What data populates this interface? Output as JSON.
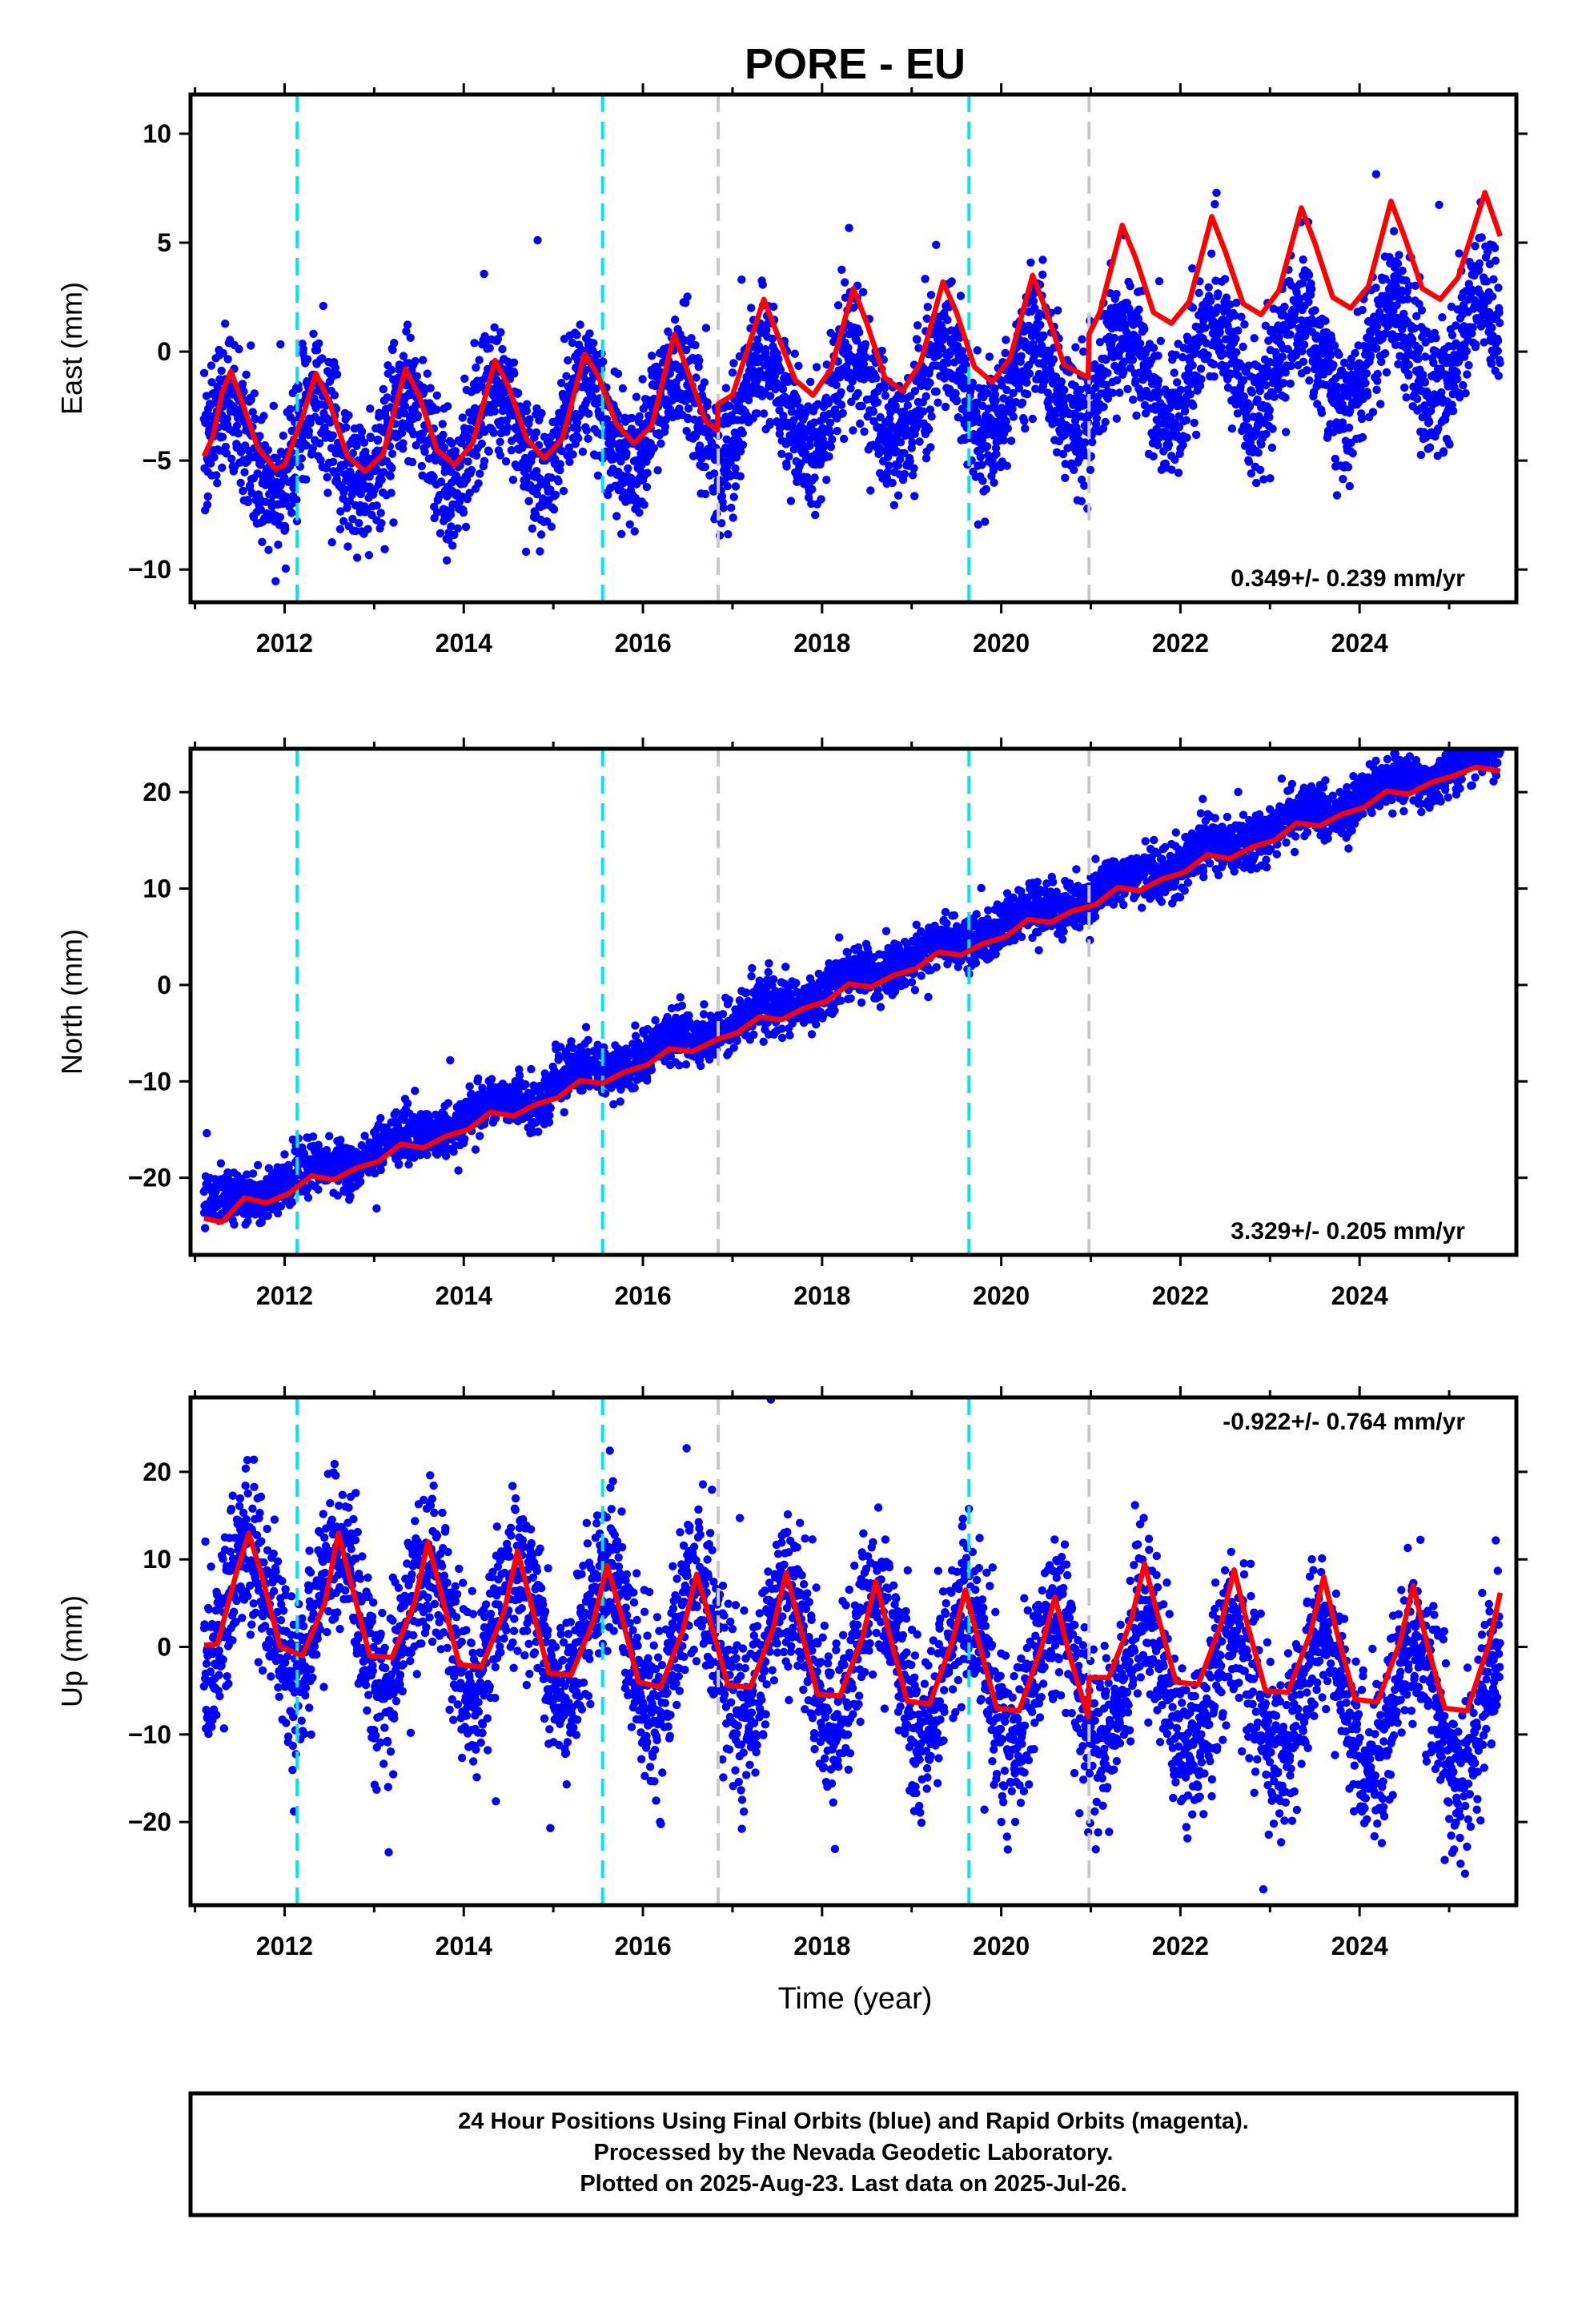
{
  "title": "PORE - EU",
  "xlabel": "Time (year)",
  "footer": {
    "line1": "24 Hour Positions Using Final Orbits (blue) and Rapid Orbits (magenta).",
    "line2": "Processed by the Nevada Geodetic Laboratory.",
    "line3": "Plotted on 2025-Aug-23. Last data on 2025-Jul-26."
  },
  "colors": {
    "data": "#0000ff",
    "model": "#ff0000",
    "equipment_change": "#00e5ee",
    "other_change": "#c8c8c8",
    "frame": "#000000"
  },
  "chart_data": [
    {
      "type": "scatter",
      "panel": "east",
      "ylabel": "East (mm)",
      "rate_label": "0.349+/- 0.239 mm/yr",
      "rate_position": "bottom-right",
      "xlim": [
        2010.95,
        2025.75
      ],
      "ylim": [
        -11.5,
        11.8
      ],
      "yticks": [
        10,
        5,
        0,
        -5,
        -10
      ],
      "xticks": [
        2012,
        2014,
        2016,
        2018,
        2020,
        2022,
        2024
      ],
      "grid": false,
      "data_range": [
        2011.1,
        2025.57
      ],
      "trend": {
        "slope_mm_per_yr": 0.349,
        "offset_mm": -4.6,
        "ref_year": 2011.5,
        "annual_amp": 2.2,
        "annual_phase_year": 0.35,
        "noise_sd": 1.5
      },
      "model_curve": [
        [
          2011.1,
          -4.8
        ],
        [
          2011.2,
          -3.9
        ],
        [
          2011.3,
          -1.9
        ],
        [
          2011.4,
          -0.9
        ],
        [
          2011.5,
          -2.0
        ],
        [
          2011.7,
          -4.4
        ],
        [
          2011.9,
          -5.4
        ],
        [
          2012.0,
          -5.2
        ],
        [
          2012.2,
          -3.0
        ],
        [
          2012.35,
          -1.0
        ],
        [
          2012.5,
          -2.3
        ],
        [
          2012.7,
          -4.8
        ],
        [
          2012.9,
          -5.5
        ],
        [
          2013.1,
          -4.7
        ],
        [
          2013.35,
          -0.8
        ],
        [
          2013.5,
          -2.0
        ],
        [
          2013.7,
          -4.5
        ],
        [
          2013.9,
          -5.2
        ],
        [
          2014.1,
          -4.2
        ],
        [
          2014.35,
          -0.4
        ],
        [
          2014.5,
          -1.6
        ],
        [
          2014.7,
          -4.0
        ],
        [
          2014.9,
          -4.9
        ],
        [
          2015.1,
          -4.0
        ],
        [
          2015.35,
          -0.1
        ],
        [
          2015.5,
          -1.1
        ],
        [
          2015.7,
          -3.3
        ],
        [
          2015.9,
          -4.2
        ],
        [
          2016.1,
          -3.4
        ],
        [
          2016.35,
          0.8
        ],
        [
          2016.5,
          -0.9
        ],
        [
          2016.7,
          -3.2
        ],
        [
          2016.83,
          -3.6
        ],
        [
          2016.84,
          -2.4
        ],
        [
          2017.0,
          -2.0
        ],
        [
          2017.35,
          2.4
        ],
        [
          2017.5,
          0.8
        ],
        [
          2017.7,
          -1.3
        ],
        [
          2017.9,
          -2.0
        ],
        [
          2018.1,
          -0.8
        ],
        [
          2018.35,
          2.9
        ],
        [
          2018.5,
          1.3
        ],
        [
          2018.7,
          -1.2
        ],
        [
          2018.9,
          -1.8
        ],
        [
          2019.1,
          -0.5
        ],
        [
          2019.35,
          3.2
        ],
        [
          2019.5,
          1.8
        ],
        [
          2019.7,
          -0.7
        ],
        [
          2019.9,
          -1.4
        ],
        [
          2020.1,
          -0.3
        ],
        [
          2020.35,
          3.5
        ],
        [
          2020.5,
          1.9
        ],
        [
          2020.7,
          -0.6
        ],
        [
          2020.97,
          -1.2
        ],
        [
          2020.98,
          0.8
        ],
        [
          2021.1,
          1.8
        ],
        [
          2021.35,
          5.8
        ],
        [
          2021.5,
          4.3
        ],
        [
          2021.7,
          1.8
        ],
        [
          2021.9,
          1.3
        ],
        [
          2022.1,
          2.3
        ],
        [
          2022.35,
          6.2
        ],
        [
          2022.5,
          4.6
        ],
        [
          2022.7,
          2.2
        ],
        [
          2022.9,
          1.7
        ],
        [
          2023.1,
          2.8
        ],
        [
          2023.35,
          6.6
        ],
        [
          2023.5,
          5.0
        ],
        [
          2023.7,
          2.5
        ],
        [
          2023.9,
          2.0
        ],
        [
          2024.1,
          3.0
        ],
        [
          2024.35,
          6.9
        ],
        [
          2024.5,
          5.3
        ],
        [
          2024.7,
          2.9
        ],
        [
          2024.9,
          2.4
        ],
        [
          2025.1,
          3.4
        ],
        [
          2025.4,
          7.3
        ],
        [
          2025.57,
          5.3
        ]
      ]
    },
    {
      "type": "scatter",
      "panel": "north",
      "ylabel": "North (mm)",
      "rate_label": "3.329+/- 0.205 mm/yr",
      "rate_position": "bottom-right",
      "xlim": [
        2010.95,
        2025.75
      ],
      "ylim": [
        -28,
        24.5
      ],
      "yticks": [
        20,
        10,
        0,
        -10,
        -20
      ],
      "xticks": [
        2012,
        2014,
        2016,
        2018,
        2020,
        2022,
        2024
      ],
      "grid": false,
      "data_range": [
        2011.1,
        2025.57
      ],
      "trend": {
        "slope_mm_per_yr": 3.329,
        "offset_mm": -23.5,
        "ref_year": 2011.1,
        "annual_amp": 0.8,
        "annual_phase_year": 0.3,
        "noise_sd": 1.3
      },
      "model_curve": [
        [
          2011.1,
          -24.2
        ],
        [
          2011.3,
          -24.6
        ],
        [
          2011.55,
          -22.1
        ],
        [
          2011.8,
          -22.6
        ],
        [
          2012.05,
          -21.6
        ],
        [
          2012.3,
          -19.8
        ],
        [
          2012.55,
          -20.2
        ],
        [
          2012.8,
          -19.0
        ],
        [
          2013.05,
          -18.3
        ],
        [
          2013.3,
          -16.5
        ],
        [
          2013.55,
          -16.9
        ],
        [
          2013.8,
          -15.7
        ],
        [
          2014.05,
          -15.0
        ],
        [
          2014.3,
          -13.2
        ],
        [
          2014.55,
          -13.6
        ],
        [
          2014.8,
          -12.4
        ],
        [
          2015.05,
          -11.7
        ],
        [
          2015.3,
          -9.9
        ],
        [
          2015.55,
          -10.2
        ],
        [
          2015.8,
          -9.0
        ],
        [
          2016.05,
          -8.3
        ],
        [
          2016.3,
          -6.6
        ],
        [
          2016.55,
          -6.9
        ],
        [
          2016.84,
          -5.6
        ],
        [
          2017.05,
          -5.0
        ],
        [
          2017.3,
          -3.3
        ],
        [
          2017.55,
          -3.6
        ],
        [
          2017.8,
          -2.4
        ],
        [
          2018.05,
          -1.7
        ],
        [
          2018.3,
          0.1
        ],
        [
          2018.55,
          -0.2
        ],
        [
          2018.8,
          1.0
        ],
        [
          2019.05,
          1.7
        ],
        [
          2019.3,
          3.4
        ],
        [
          2019.55,
          3.1
        ],
        [
          2019.8,
          4.3
        ],
        [
          2020.05,
          5.0
        ],
        [
          2020.3,
          6.8
        ],
        [
          2020.55,
          6.5
        ],
        [
          2020.8,
          7.7
        ],
        [
          2021.05,
          8.3
        ],
        [
          2021.3,
          10.1
        ],
        [
          2021.55,
          9.8
        ],
        [
          2021.8,
          11.0
        ],
        [
          2022.05,
          11.7
        ],
        [
          2022.3,
          13.5
        ],
        [
          2022.55,
          13.1
        ],
        [
          2022.8,
          14.3
        ],
        [
          2023.05,
          15.0
        ],
        [
          2023.3,
          16.8
        ],
        [
          2023.55,
          16.5
        ],
        [
          2023.8,
          17.7
        ],
        [
          2024.05,
          18.4
        ],
        [
          2024.3,
          20.1
        ],
        [
          2024.55,
          19.8
        ],
        [
          2024.8,
          21.0
        ],
        [
          2025.05,
          21.7
        ],
        [
          2025.3,
          22.6
        ],
        [
          2025.57,
          22.2
        ]
      ]
    },
    {
      "type": "scatter",
      "panel": "up",
      "ylabel": "Up (mm)",
      "rate_label": "-0.922+/- 0.764 mm/yr",
      "rate_position": "top-right",
      "xlim": [
        2010.95,
        2025.75
      ],
      "ylim": [
        -29.5,
        28.5
      ],
      "yticks": [
        20,
        10,
        0,
        -10,
        -20
      ],
      "xticks": [
        2012,
        2014,
        2016,
        2018,
        2020,
        2022,
        2024
      ],
      "grid": false,
      "data_range": [
        2011.1,
        2025.57
      ],
      "trend": {
        "slope_mm_per_yr": -0.922,
        "offset_mm": 4.8,
        "ref_year": 2011.5,
        "annual_amp": 7.5,
        "annual_phase_year": 0.6,
        "noise_sd": 4.5
      },
      "model_curve": [
        [
          2011.1,
          0.2
        ],
        [
          2011.25,
          0.3
        ],
        [
          2011.45,
          8.0
        ],
        [
          2011.6,
          13.0
        ],
        [
          2011.75,
          8.0
        ],
        [
          2011.95,
          0.0
        ],
        [
          2012.2,
          -1.0
        ],
        [
          2012.45,
          5.0
        ],
        [
          2012.6,
          13.0
        ],
        [
          2012.75,
          7.0
        ],
        [
          2012.95,
          -1.0
        ],
        [
          2013.2,
          -1.2
        ],
        [
          2013.45,
          5.0
        ],
        [
          2013.6,
          12.0
        ],
        [
          2013.75,
          6.0
        ],
        [
          2013.95,
          -2.0
        ],
        [
          2014.2,
          -2.3
        ],
        [
          2014.45,
          4.0
        ],
        [
          2014.6,
          11.0
        ],
        [
          2014.75,
          5.0
        ],
        [
          2014.95,
          -3.0
        ],
        [
          2015.2,
          -3.2
        ],
        [
          2015.45,
          3.0
        ],
        [
          2015.6,
          9.3
        ],
        [
          2015.75,
          4.0
        ],
        [
          2015.95,
          -4.0
        ],
        [
          2016.2,
          -4.6
        ],
        [
          2016.45,
          2.0
        ],
        [
          2016.6,
          8.3
        ],
        [
          2016.75,
          3.0
        ],
        [
          2016.95,
          -4.4
        ],
        [
          2017.2,
          -4.6
        ],
        [
          2017.45,
          2.0
        ],
        [
          2017.6,
          8.5
        ],
        [
          2017.75,
          2.5
        ],
        [
          2017.95,
          -5.4
        ],
        [
          2018.2,
          -5.6
        ],
        [
          2018.45,
          1.0
        ],
        [
          2018.6,
          7.5
        ],
        [
          2018.75,
          1.5
        ],
        [
          2018.95,
          -6.2
        ],
        [
          2019.2,
          -6.5
        ],
        [
          2019.45,
          0.5
        ],
        [
          2019.6,
          6.5
        ],
        [
          2019.75,
          0.5
        ],
        [
          2019.95,
          -7.0
        ],
        [
          2020.2,
          -7.3
        ],
        [
          2020.45,
          0.0
        ],
        [
          2020.6,
          5.7
        ],
        [
          2020.75,
          -0.5
        ],
        [
          2020.97,
          -8.0
        ],
        [
          2020.98,
          -3.5
        ],
        [
          2021.2,
          -3.5
        ],
        [
          2021.45,
          3.0
        ],
        [
          2021.6,
          9.5
        ],
        [
          2021.75,
          3.5
        ],
        [
          2021.95,
          -4.0
        ],
        [
          2022.2,
          -4.3
        ],
        [
          2022.45,
          2.5
        ],
        [
          2022.6,
          8.8
        ],
        [
          2022.75,
          2.5
        ],
        [
          2022.95,
          -5.0
        ],
        [
          2023.2,
          -5.2
        ],
        [
          2023.45,
          1.5
        ],
        [
          2023.6,
          8.0
        ],
        [
          2023.75,
          1.5
        ],
        [
          2023.95,
          -6.0
        ],
        [
          2024.2,
          -6.3
        ],
        [
          2024.45,
          0.5
        ],
        [
          2024.6,
          7.0
        ],
        [
          2024.75,
          0.5
        ],
        [
          2024.95,
          -7.0
        ],
        [
          2025.2,
          -7.3
        ],
        [
          2025.45,
          0.5
        ],
        [
          2025.57,
          6.2
        ]
      ]
    }
  ],
  "breaks": [
    {
      "year": 2012.14,
      "kind": "equipment"
    },
    {
      "year": 2015.55,
      "kind": "equipment"
    },
    {
      "year": 2016.84,
      "kind": "other"
    },
    {
      "year": 2019.64,
      "kind": "equipment"
    },
    {
      "year": 2020.98,
      "kind": "other"
    }
  ]
}
